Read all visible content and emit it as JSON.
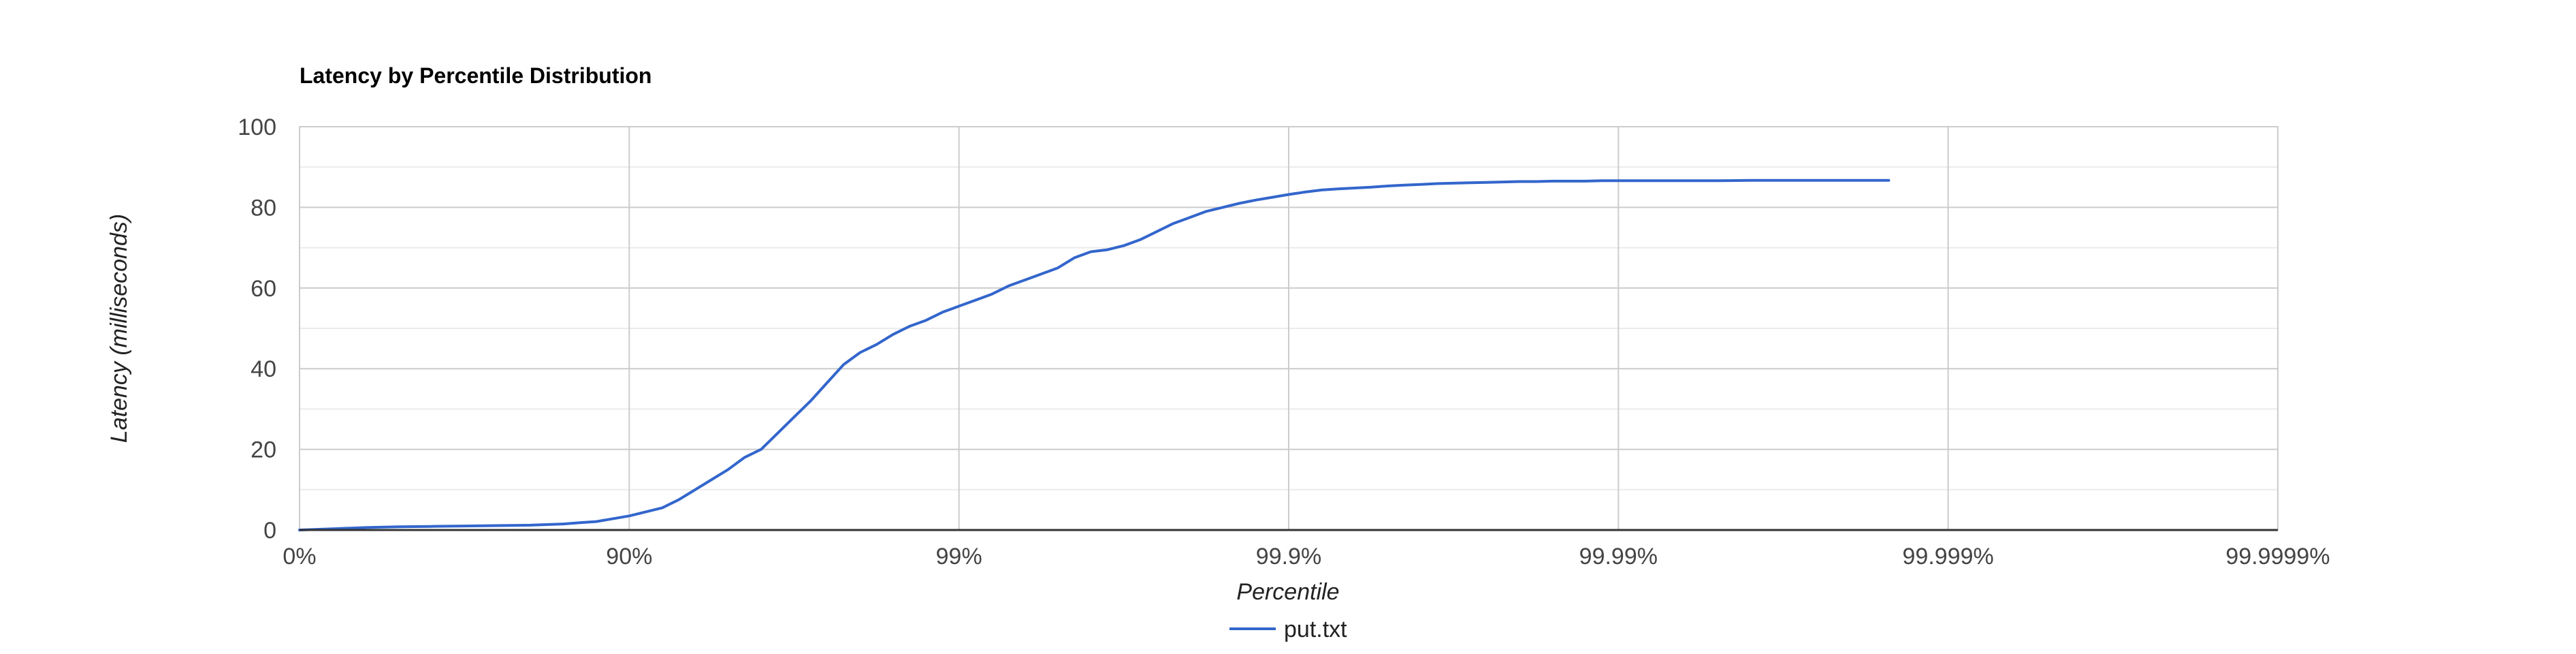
{
  "chart_data": {
    "type": "line",
    "title": "Latency by Percentile Distribution",
    "xlabel": "Percentile",
    "ylabel": "Latency (milliseconds)",
    "x_scale": "log-nines",
    "x_ticks": [
      "0%",
      "90%",
      "99%",
      "99.9%",
      "99.99%",
      "99.999%",
      "99.9999%"
    ],
    "x_range_nines": [
      0,
      6
    ],
    "y_ticks": [
      0,
      20,
      40,
      60,
      80,
      100
    ],
    "ylim": [
      0,
      100
    ],
    "grid": true,
    "legend": "bottom",
    "series": [
      {
        "name": "put.txt",
        "color": "#3366cc",
        "x_nines": [
          0,
          0.1,
          0.2,
          0.3,
          0.4,
          0.5,
          0.6,
          0.7,
          0.8,
          0.85,
          0.9,
          1.0,
          1.1,
          1.15,
          1.2,
          1.25,
          1.3,
          1.35,
          1.4,
          1.45,
          1.5,
          1.55,
          1.6,
          1.65,
          1.7,
          1.75,
          1.8,
          1.85,
          1.9,
          1.95,
          2.0,
          2.05,
          2.1,
          2.15,
          2.2,
          2.25,
          2.3,
          2.35,
          2.4,
          2.45,
          2.5,
          2.55,
          2.6,
          2.65,
          2.7,
          2.75,
          2.8,
          2.85,
          2.9,
          2.95,
          3.0,
          3.05,
          3.1,
          3.15,
          3.2,
          3.25,
          3.3,
          3.35,
          3.4,
          3.45,
          3.5,
          3.55,
          3.6,
          3.65,
          3.7,
          3.75,
          3.8,
          3.85,
          3.9,
          3.95,
          4.0,
          4.1,
          4.2,
          4.3,
          4.4,
          4.5,
          4.6,
          4.7,
          4.82
        ],
        "y": [
          0,
          0.3,
          0.6,
          0.8,
          0.9,
          1.0,
          1.1,
          1.2,
          1.5,
          1.8,
          2.1,
          3.5,
          5.5,
          7.5,
          10,
          12.5,
          15,
          18,
          20,
          24,
          28,
          32,
          36.5,
          41,
          44,
          46,
          48.5,
          50.5,
          52,
          54,
          55.5,
          57,
          58.5,
          60.5,
          62,
          63.5,
          65,
          67.5,
          69,
          69.5,
          70.5,
          72,
          74,
          76,
          77.5,
          79,
          80,
          81,
          81.8,
          82.5,
          83.2,
          83.8,
          84.3,
          84.6,
          84.8,
          85,
          85.3,
          85.5,
          85.7,
          85.9,
          86,
          86.1,
          86.2,
          86.3,
          86.4,
          86.4,
          86.5,
          86.5,
          86.5,
          86.6,
          86.6,
          86.6,
          86.6,
          86.6,
          86.7,
          86.7,
          86.7,
          86.7,
          86.7
        ]
      }
    ]
  }
}
